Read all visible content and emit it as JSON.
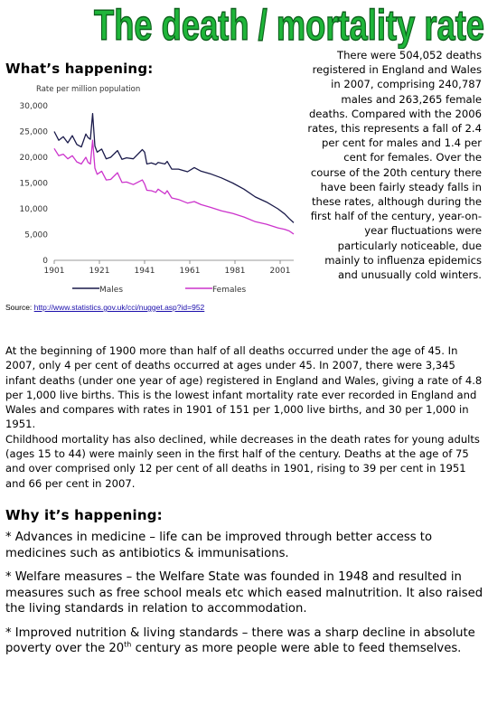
{
  "title": "The death / mortality rate",
  "section_whats_happening": "What’s happening:",
  "section_why": "Why it’s happening:",
  "source": {
    "label": "Source:",
    "url": "http://www.statistics.gov.uk/cci/nugget.asp?id=952"
  },
  "right_text": "There were 504,052 deaths registered in England and Wales in 2007, comprising 240,787 males and 263,265 female deaths. Compared with the 2006 rates, this represents a fall of 2.4 per cent for males and 1.4 per cent for females. Over the course of the 20th century there have been fairly steady falls in these rates, although during the first half of the century, year-on-year fluctuations were particularly noticeable, due mainly to influenza epidemics and unusually cold winters.",
  "body_paragraphs": [
    "At the beginning of 1900 more than half of all deaths occurred under the age of 45. In 2007, only 4 per cent of deaths occurred at ages under 45. In 2007, there were 3,345 infant deaths (under one year of age) registered in England and Wales, giving a rate of 4.8 per 1,000 live births. This is the lowest infant mortality rate ever recorded in England and Wales and compares with rates in 1901 of 151 per 1,000 live births, and 30 per 1,000 in 1951.",
    "Childhood mortality has also declined, while decreases in the death rates for young adults (ages 15 to 44) were mainly seen in the first half of the century. Deaths at the age of 75 and over comprised only 12 per cent of all deaths in 1901, rising to 39 per cent in 1951 and 66 per cent in 2007."
  ],
  "reasons": [
    {
      "text": "* Advances in medicine – life can be improved through better access to medicines such as antibiotics & immunisations."
    },
    {
      "text": "* Welfare measures – the Welfare State was founded in 1948 and resulted in measures such as free school meals etc which eased malnutrition. It also raised the living standards in relation to accommodation."
    },
    {
      "text_before": "* Improved nutrition & living standards – there was a sharp decline in absolute poverty over the 20",
      "sup": "th",
      "text_after": " century as more people were able to feed themselves."
    }
  ],
  "colors": {
    "title_fill": "#1fb53a",
    "title_stroke": "#0b5f1a",
    "males": "#1a1a4a",
    "females": "#cc33cc",
    "axis": "#555555"
  },
  "chart_data": {
    "type": "line",
    "ylabel": "Rate per million population",
    "ylim": [
      0,
      30000
    ],
    "xlim": [
      1901,
      2007
    ],
    "x_ticks": [
      "1901",
      "1921",
      "1941",
      "1961",
      "1981",
      "2001"
    ],
    "y_ticks": [
      "30,000",
      "25,000",
      "20,000",
      "15,000",
      "10,000",
      "5,000",
      "0"
    ],
    "legend_position": "bottom",
    "series": [
      {
        "name": "Males",
        "color": "#1a1a4a",
        "x": [
          1901,
          1903,
          1905,
          1907,
          1909,
          1911,
          1913,
          1915,
          1916,
          1917,
          1918,
          1919,
          1920,
          1922,
          1924,
          1926,
          1929,
          1931,
          1933,
          1936,
          1940,
          1941,
          1942,
          1944,
          1946,
          1947,
          1950,
          1951,
          1953,
          1956,
          1960,
          1963,
          1966,
          1970,
          1975,
          1980,
          1985,
          1990,
          1995,
          2000,
          2003,
          2005,
          2007
        ],
        "y": [
          25000,
          23300,
          24000,
          22800,
          24200,
          22500,
          22000,
          24500,
          23800,
          23500,
          28500,
          22200,
          21000,
          21600,
          19700,
          20000,
          21300,
          19600,
          19900,
          19700,
          21500,
          21000,
          18700,
          18900,
          18600,
          19000,
          18700,
          19200,
          17700,
          17700,
          17200,
          18000,
          17300,
          16800,
          16000,
          15000,
          13800,
          12300,
          11300,
          10000,
          9000,
          8100,
          7300
        ]
      },
      {
        "name": "Females",
        "color": "#cc33cc",
        "x": [
          1901,
          1903,
          1905,
          1907,
          1909,
          1911,
          1913,
          1915,
          1916,
          1917,
          1918,
          1919,
          1920,
          1922,
          1924,
          1926,
          1929,
          1931,
          1933,
          1936,
          1940,
          1941,
          1942,
          1944,
          1946,
          1947,
          1950,
          1951,
          1953,
          1956,
          1960,
          1963,
          1966,
          1970,
          1975,
          1980,
          1985,
          1990,
          1995,
          2000,
          2003,
          2005,
          2007
        ],
        "y": [
          21700,
          20300,
          20600,
          19700,
          20300,
          19100,
          18700,
          20000,
          19000,
          18700,
          23300,
          17900,
          16700,
          17300,
          15600,
          15700,
          17000,
          15100,
          15200,
          14700,
          15600,
          14800,
          13600,
          13500,
          13200,
          13800,
          12900,
          13500,
          12100,
          11800,
          11100,
          11400,
          10800,
          10300,
          9600,
          9100,
          8400,
          7500,
          7000,
          6300,
          6000,
          5700,
          5100
        ]
      }
    ]
  }
}
